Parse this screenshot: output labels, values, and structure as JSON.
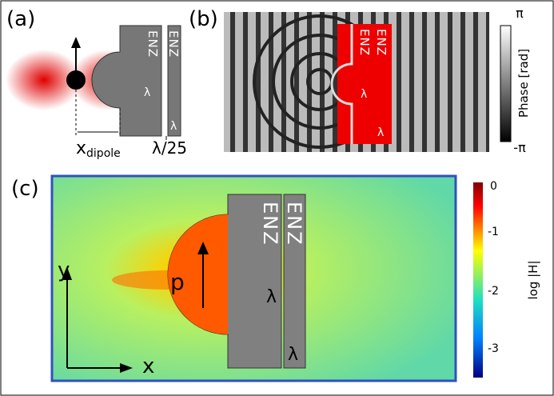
{
  "panels": [
    {
      "label": "(a)",
      "layer_labels": [
        "ENZ",
        "ENZ"
      ],
      "gap_label": "λ",
      "thickness_label": "λ",
      "position_label": {
        "main": "x",
        "subscript": "dipole"
      },
      "thickness_note": "λ/25"
    },
    {
      "label": "(b)",
      "layer_labels": [
        "ENZ",
        "ENZ"
      ],
      "gap_label": "λ",
      "thickness_label": "λ",
      "colorbar": {
        "title": "Phase [rad]",
        "ticks": [
          "π",
          "-π"
        ]
      }
    },
    {
      "label": "(c)",
      "layer_labels": [
        "ENZ",
        "ENZ"
      ],
      "gap_label": "λ",
      "thickness_label": "λ",
      "axes": {
        "y": "y",
        "x": "x"
      },
      "dipole": "p",
      "colorbar": {
        "title": "log |H|",
        "ticks": [
          0,
          -1,
          -2,
          -3
        ]
      }
    }
  ]
}
